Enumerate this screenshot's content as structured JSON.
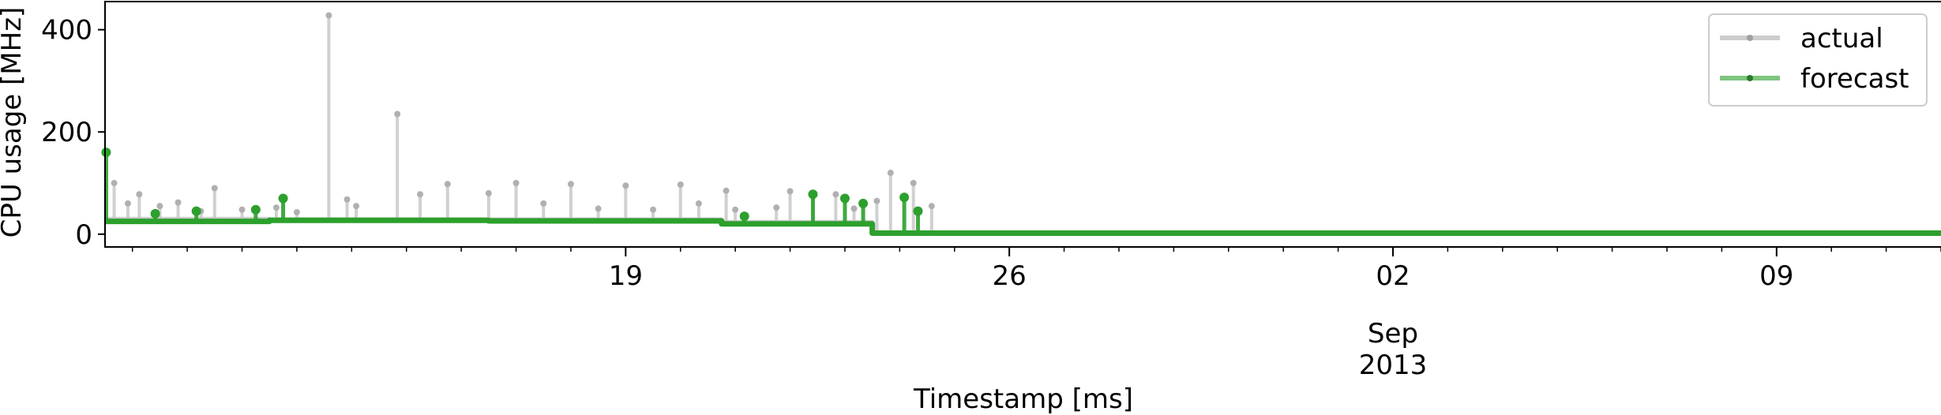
{
  "chart_data": {
    "type": "line",
    "title": "",
    "xlabel": "Timestamp [ms]",
    "ylabel": "CPU usage [MHz]",
    "x_axis": {
      "type": "date",
      "range": [
        "2013-08-09T12:00",
        "2013-09-12T00:00"
      ],
      "major_ticks": [
        {
          "date": "2013-08-19",
          "label": "19"
        },
        {
          "date": "2013-08-26",
          "label": "26"
        },
        {
          "date": "2013-09-02",
          "label": "02"
        },
        {
          "date": "2013-09-09",
          "label": "09"
        }
      ],
      "minor_tick_step_days": 1,
      "secondary_label": [
        "Sep",
        "2013"
      ],
      "secondary_label_date": "2013-09-02"
    },
    "y_axis": {
      "range": [
        -25,
        455
      ],
      "ticks": [
        0,
        200,
        400
      ]
    },
    "grid": false,
    "legend": {
      "position": "top-right",
      "entries": [
        {
          "name": "actual",
          "color": "#c8c8c8"
        },
        {
          "name": "forecast",
          "color": "#2ca02c"
        }
      ]
    },
    "series": [
      {
        "name": "actual",
        "color": "#c8c8c8",
        "segments": [
          {
            "start": "2013-08-09T12:00",
            "end": "2013-08-12T12:00",
            "value": 30
          },
          {
            "start": "2013-08-12T12:00",
            "end": "2013-08-16T12:00",
            "value": 29
          },
          {
            "start": "2013-08-16T12:00",
            "end": "2013-08-20T18:00",
            "value": 29
          },
          {
            "start": "2013-08-20T18:00",
            "end": "2013-08-23T12:00",
            "value": 24
          },
          {
            "start": "2013-08-23T12:00",
            "end": "2013-09-12T00:00",
            "value": 2
          }
        ],
        "spikes": [
          {
            "x": "2013-08-09T16:00",
            "y": 100
          },
          {
            "x": "2013-08-09T22:00",
            "y": 60
          },
          {
            "x": "2013-08-10T03:00",
            "y": 78
          },
          {
            "x": "2013-08-10T12:00",
            "y": 55
          },
          {
            "x": "2013-08-10T20:00",
            "y": 62
          },
          {
            "x": "2013-08-11T06:00",
            "y": 45
          },
          {
            "x": "2013-08-11T12:00",
            "y": 90
          },
          {
            "x": "2013-08-12T00:00",
            "y": 48
          },
          {
            "x": "2013-08-12T15:00",
            "y": 52
          },
          {
            "x": "2013-08-13T00:00",
            "y": 43
          },
          {
            "x": "2013-08-13T14:00",
            "y": 428
          },
          {
            "x": "2013-08-13T22:00",
            "y": 68
          },
          {
            "x": "2013-08-14T02:00",
            "y": 55
          },
          {
            "x": "2013-08-14T20:00",
            "y": 235
          },
          {
            "x": "2013-08-15T06:00",
            "y": 78
          },
          {
            "x": "2013-08-15T18:00",
            "y": 98
          },
          {
            "x": "2013-08-16T12:00",
            "y": 80
          },
          {
            "x": "2013-08-17T00:00",
            "y": 100
          },
          {
            "x": "2013-08-17T12:00",
            "y": 60
          },
          {
            "x": "2013-08-18T00:00",
            "y": 98
          },
          {
            "x": "2013-08-18T12:00",
            "y": 50
          },
          {
            "x": "2013-08-19T00:00",
            "y": 95
          },
          {
            "x": "2013-08-19T12:00",
            "y": 48
          },
          {
            "x": "2013-08-20T00:00",
            "y": 97
          },
          {
            "x": "2013-08-20T08:00",
            "y": 60
          },
          {
            "x": "2013-08-20T20:00",
            "y": 85
          },
          {
            "x": "2013-08-21T00:00",
            "y": 48
          },
          {
            "x": "2013-08-21T18:00",
            "y": 52
          },
          {
            "x": "2013-08-22T00:00",
            "y": 84
          },
          {
            "x": "2013-08-22T10:00",
            "y": 80
          },
          {
            "x": "2013-08-22T20:00",
            "y": 78
          },
          {
            "x": "2013-08-23T04:00",
            "y": 50
          },
          {
            "x": "2013-08-23T14:00",
            "y": 65
          },
          {
            "x": "2013-08-23T20:00",
            "y": 120
          },
          {
            "x": "2013-08-24T06:00",
            "y": 100
          },
          {
            "x": "2013-08-24T14:00",
            "y": 55
          }
        ]
      },
      {
        "name": "forecast",
        "color": "#2ca02c",
        "segments": [
          {
            "start": "2013-08-09T12:00",
            "end": "2013-08-12T12:00",
            "value": 25
          },
          {
            "start": "2013-08-12T12:00",
            "end": "2013-08-16T12:00",
            "value": 27
          },
          {
            "start": "2013-08-16T12:00",
            "end": "2013-08-20T18:00",
            "value": 26
          },
          {
            "start": "2013-08-20T18:00",
            "end": "2013-08-23T12:00",
            "value": 20
          },
          {
            "start": "2013-08-23T12:00",
            "end": "2013-09-12T00:00",
            "value": 2
          }
        ],
        "spikes": [
          {
            "x": "2013-08-09T12:30",
            "y": 160
          },
          {
            "x": "2013-08-10T10:00",
            "y": 40
          },
          {
            "x": "2013-08-11T04:00",
            "y": 45
          },
          {
            "x": "2013-08-12T06:00",
            "y": 48
          },
          {
            "x": "2013-08-12T18:00",
            "y": 70
          },
          {
            "x": "2013-08-21T04:00",
            "y": 35
          },
          {
            "x": "2013-08-22T10:00",
            "y": 78
          },
          {
            "x": "2013-08-23T00:00",
            "y": 70
          },
          {
            "x": "2013-08-23T08:00",
            "y": 60
          },
          {
            "x": "2013-08-24T02:00",
            "y": 72
          },
          {
            "x": "2013-08-24T08:00",
            "y": 45
          }
        ]
      }
    ]
  }
}
